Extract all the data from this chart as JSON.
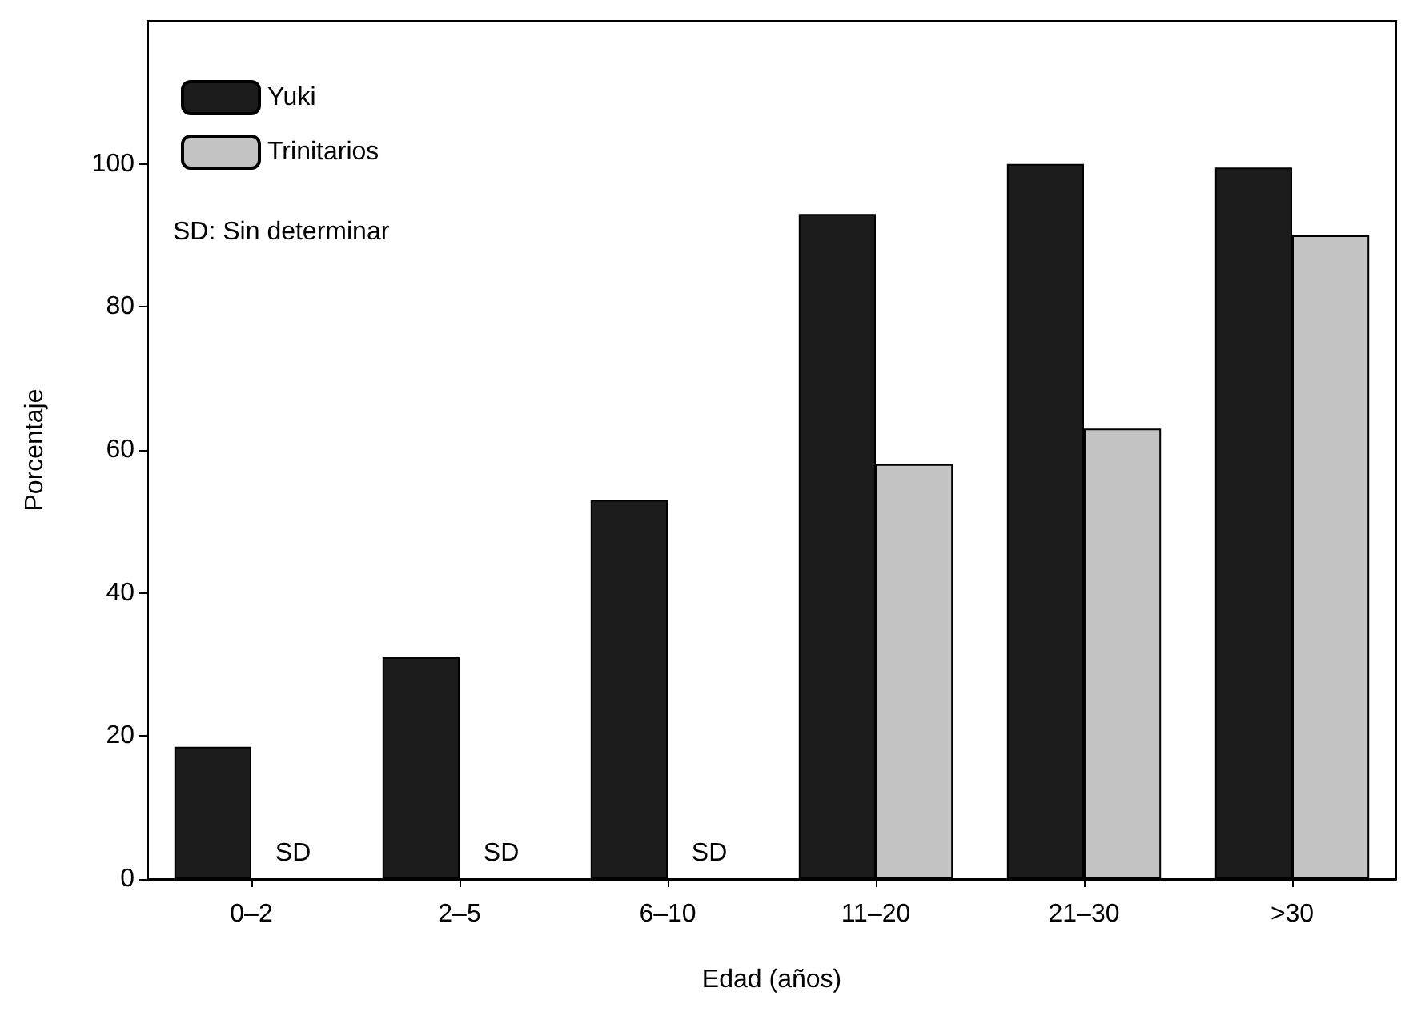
{
  "chart_data": {
    "type": "bar",
    "xlabel": "Edad (años)",
    "ylabel": "Porcentaje",
    "categories": [
      "0–2",
      "2–5",
      "6–10",
      "11–20",
      "21–30",
      ">30"
    ],
    "series": [
      {
        "name": "Yuki",
        "color": "#1c1c1c",
        "values": [
          18.5,
          31,
          53,
          93,
          100,
          99.5
        ]
      },
      {
        "name": "Trinitarios",
        "color": "#c4c4c4",
        "values": [
          null,
          null,
          null,
          58,
          63,
          90
        ]
      }
    ],
    "ylim": [
      0,
      120
    ],
    "yticks": [
      0,
      20,
      40,
      60,
      80,
      100
    ],
    "grid": false,
    "legend": "top left",
    "annotations": [
      "SD: Sin determinar",
      {
        "text": "SD",
        "x": "0–2",
        "y": 0
      },
      {
        "text": "SD",
        "x": "2–5",
        "y": 0
      },
      {
        "text": "SD",
        "x": "6–10",
        "y": 0
      }
    ]
  }
}
